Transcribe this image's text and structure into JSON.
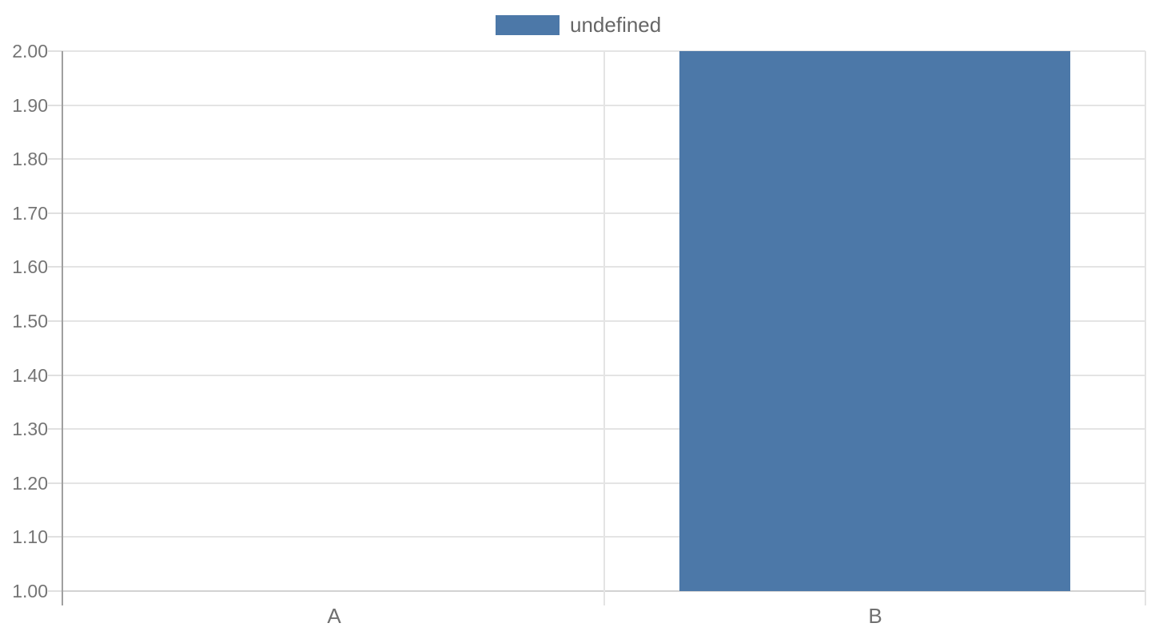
{
  "chart_data": {
    "type": "bar",
    "categories": [
      "A",
      "B"
    ],
    "series": [
      {
        "name": "undefined",
        "values": [
          1.0,
          2.0
        ],
        "color": "#4c78a8"
      }
    ],
    "title": "",
    "xlabel": "",
    "ylabel": "",
    "ylim": [
      1.0,
      2.0
    ],
    "y_ticks": [
      1.0,
      1.1,
      1.2,
      1.3,
      1.4,
      1.5,
      1.6,
      1.7,
      1.8,
      1.9,
      2.0
    ],
    "y_tick_labels": [
      "1.00",
      "1.10",
      "1.20",
      "1.30",
      "1.40",
      "1.50",
      "1.60",
      "1.70",
      "1.80",
      "1.90",
      "2.00"
    ],
    "grid": true,
    "legend": {
      "position": "top-center",
      "label": "undefined"
    }
  },
  "colors": {
    "bar": "#4c78a8",
    "gridline": "#e4e4e4",
    "baseline": "#d2d2d2",
    "tick": "#e0e0e0",
    "axis_line": "#a0a0a0",
    "y_label_text": "#757575",
    "x_label_text": "#707070",
    "legend_text": "#666666",
    "background": "#ffffff"
  }
}
